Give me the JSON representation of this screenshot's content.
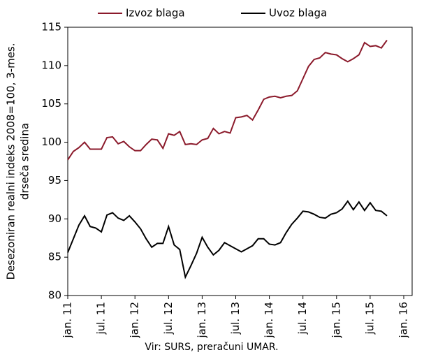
{
  "chart_data": {
    "type": "line",
    "y_label": [
      "Desezoniran realni indeks 2008=100, 3-mes.",
      "drseča sredina"
    ],
    "source": "Vir: SURS, preračuni UMAR.",
    "categories": [
      "jan. 11",
      null,
      null,
      null,
      null,
      null,
      "jul. 11",
      null,
      null,
      null,
      null,
      null,
      "jan. 12",
      null,
      null,
      null,
      null,
      null,
      "jul. 12",
      null,
      null,
      null,
      null,
      null,
      "jan. 13",
      null,
      null,
      null,
      null,
      null,
      "jul. 13",
      null,
      null,
      null,
      null,
      null,
      "jan. 14",
      null,
      null,
      null,
      null,
      null,
      "jul. 14",
      null,
      null,
      null,
      null,
      null,
      "jan. 15",
      null,
      null,
      null,
      null,
      null,
      "jul. 15",
      null,
      null,
      null,
      null,
      null,
      "jan. 16"
    ],
    "series": [
      {
        "name": "Izvoz blaga",
        "color": "#8b1a2b",
        "values": [
          97.7,
          98.8,
          99.3,
          100.0,
          99.1,
          99.1,
          99.1,
          100.6,
          100.7,
          99.8,
          100.1,
          99.4,
          98.9,
          98.9,
          99.7,
          100.4,
          100.3,
          99.2,
          101.1,
          100.9,
          101.4,
          99.7,
          99.8,
          99.7,
          100.3,
          100.5,
          101.8,
          101.1,
          101.4,
          101.2,
          103.2,
          103.3,
          103.5,
          102.9,
          104.2,
          105.6,
          105.9,
          106.0,
          105.8,
          106.0,
          106.1,
          106.7,
          108.3,
          109.9,
          110.8,
          111.0,
          111.7,
          111.5,
          111.4,
          110.9,
          110.5,
          110.9,
          111.4,
          113.0,
          112.5,
          112.6,
          112.3,
          113.3,
          null,
          null,
          null
        ]
      },
      {
        "name": "Uvoz blaga",
        "color": "#000000",
        "values": [
          85.6,
          87.4,
          89.2,
          90.4,
          89.0,
          88.8,
          88.3,
          90.5,
          90.8,
          90.1,
          89.8,
          90.4,
          89.6,
          88.7,
          87.4,
          86.3,
          86.8,
          86.8,
          89.0,
          86.6,
          86.0,
          82.4,
          83.9,
          85.5,
          87.6,
          86.3,
          85.3,
          85.9,
          86.9,
          86.5,
          86.1,
          85.7,
          86.1,
          86.5,
          87.4,
          87.4,
          86.7,
          86.6,
          86.9,
          88.2,
          89.3,
          90.1,
          91.0,
          90.9,
          90.6,
          90.2,
          90.1,
          90.6,
          90.8,
          91.3,
          92.3,
          91.2,
          92.2,
          91.1,
          92.1,
          91.1,
          91.0,
          90.4,
          null,
          null,
          null
        ]
      }
    ],
    "ylim": [
      80,
      115
    ],
    "yticks": [
      80,
      85,
      90,
      95,
      100,
      105,
      110,
      115
    ],
    "grid": false,
    "legend": "top"
  }
}
